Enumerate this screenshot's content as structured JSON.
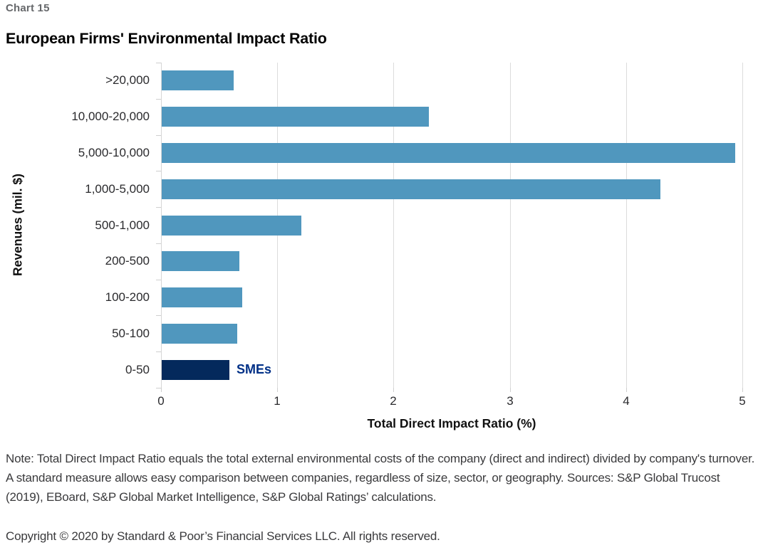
{
  "header": {
    "chart_label": "Chart 15"
  },
  "chart_data": {
    "type": "bar",
    "orientation": "horizontal",
    "title": "European Firms' Environmental Impact Ratio",
    "categories": [
      ">20,000",
      "10,000-20,000",
      "5,000-10,000",
      "1,000-5,000",
      "500-1,000",
      "200-500",
      "100-200",
      "50-100",
      "0-50"
    ],
    "values": [
      0.62,
      2.3,
      4.93,
      4.29,
      1.2,
      0.67,
      0.69,
      0.65,
      0.58
    ],
    "xlabel": "Total Direct Impact Ratio (%)",
    "ylabel": "Revenues (mil. $)",
    "xlim": [
      0,
      5
    ],
    "xticks": [
      0,
      1,
      2,
      3,
      4,
      5
    ],
    "grid": "vertical-gridlines-on",
    "legend": "none",
    "bar_color": "#5097be",
    "highlight_index": 8,
    "highlight_color": "#04295c",
    "annotation": {
      "text": "SMEs",
      "color": "#003087",
      "category": "0-50"
    }
  },
  "note": "Note: Total Direct Impact Ratio equals the total external environmental costs of the company (direct and indirect) divided by company's turnover. A standard measure allows easy comparison between companies, regardless of size, sector, or geography. Sources: S&P Global Trucost (2019), EBoard, S&P Global Market Intelligence, S&P Global Ratings’ calculations.",
  "copyright": "Copyright © 2020 by Standard & Poor’s Financial Services LLC. All rights reserved."
}
